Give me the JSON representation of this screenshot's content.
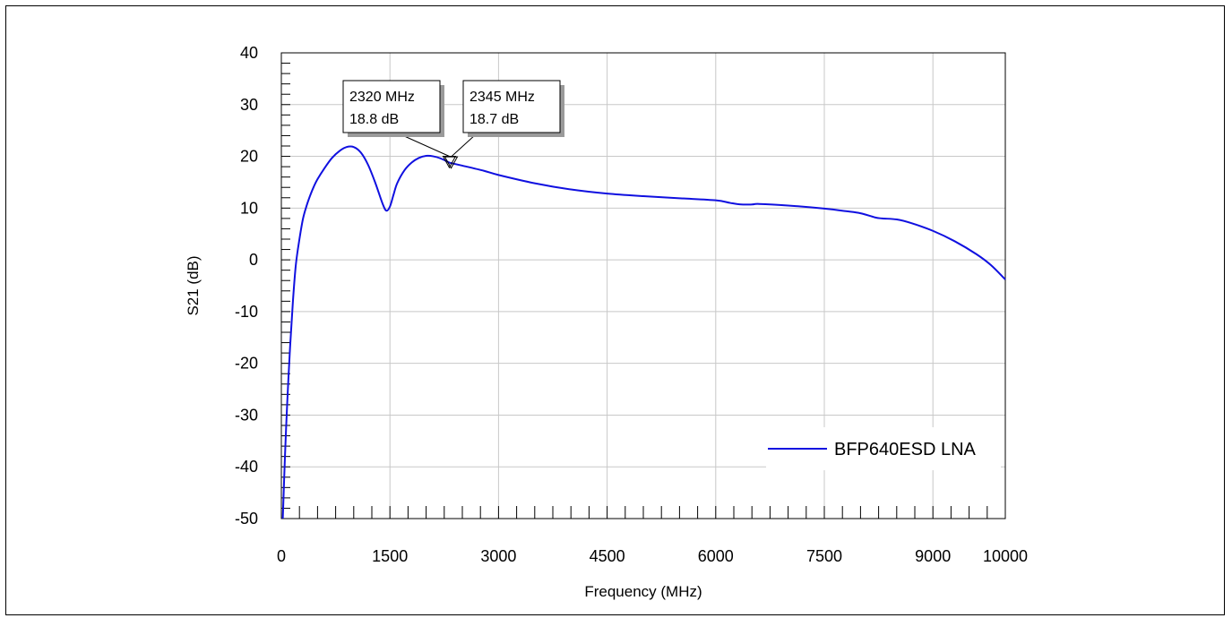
{
  "chart_data": {
    "type": "line",
    "xlabel": "Frequency (MHz)",
    "ylabel": "S21 (dB)",
    "xlim": [
      0,
      10000
    ],
    "ylim": [
      -50,
      40
    ],
    "x_ticks": [
      "0",
      "1500",
      "3000",
      "4500",
      "6000",
      "7500",
      "9000",
      "10000"
    ],
    "x_tick_values": [
      0,
      1500,
      3000,
      4500,
      6000,
      7500,
      9000,
      10000
    ],
    "y_ticks": [
      "40",
      "30",
      "20",
      "10",
      "0",
      "-10",
      "-20",
      "-30",
      "-40",
      "-50"
    ],
    "y_tick_values": [
      40,
      30,
      20,
      10,
      0,
      -10,
      -20,
      -30,
      -40,
      -50
    ],
    "grid": true,
    "legend_position": "bottom-right",
    "series": [
      {
        "name": "BFP640ESD LNA",
        "color": "#1010e0",
        "x": [
          20,
          50,
          80,
          120,
          160,
          200,
          250,
          300,
          350,
          400,
          450,
          500,
          600,
          700,
          800,
          900,
          1000,
          1100,
          1200,
          1300,
          1400,
          1450,
          1500,
          1550,
          1600,
          1700,
          1800,
          1900,
          2000,
          2100,
          2200,
          2320,
          2345,
          2500,
          2800,
          3000,
          3500,
          4000,
          4500,
          5000,
          5500,
          6000,
          6200,
          6350,
          6500,
          6600,
          7000,
          7500,
          7800,
          8000,
          8200,
          8300,
          8500,
          8700,
          9000,
          9300,
          9600,
          9800,
          10000
        ],
        "y": [
          -50,
          -38,
          -28,
          -17,
          -8,
          -1,
          4,
          8,
          10.5,
          12.5,
          14.2,
          15.6,
          17.8,
          19.7,
          21.0,
          21.8,
          21.8,
          20.7,
          18.3,
          14.8,
          10.8,
          9.5,
          10.3,
          12.6,
          14.8,
          17.3,
          18.8,
          19.7,
          20.1,
          20.0,
          19.6,
          18.8,
          18.7,
          18.2,
          17.2,
          16.4,
          14.8,
          13.6,
          12.8,
          12.3,
          11.9,
          11.5,
          11.0,
          10.7,
          10.7,
          10.8,
          10.5,
          9.9,
          9.4,
          9.0,
          8.2,
          8.0,
          7.8,
          7.1,
          5.6,
          3.6,
          1.1,
          -1.0,
          -3.8
        ]
      }
    ],
    "markers": [
      {
        "x": 2320,
        "y": 18.8,
        "label_freq": "2320 MHz",
        "label_gain": "18.8 dB"
      },
      {
        "x": 2345,
        "y": 18.7,
        "label_freq": "2345 MHz",
        "label_gain": "18.7 dB"
      }
    ]
  }
}
